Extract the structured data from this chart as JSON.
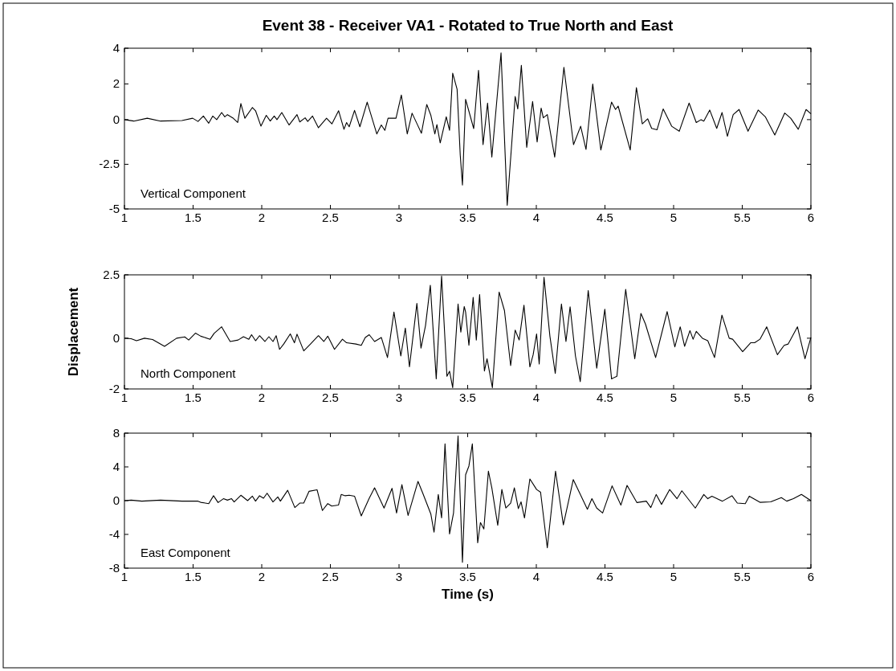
{
  "chart_data": [
    {
      "type": "line",
      "title": "Event 38 - Receiver VA1 - Rotated to True North and East",
      "xlim": [
        1,
        6
      ],
      "xticks": [
        1,
        1.5,
        2,
        2.5,
        3,
        3.5,
        4,
        4.5,
        5,
        5.5,
        6
      ],
      "ylim": [
        -5,
        4
      ],
      "yticks": [
        4,
        2,
        0,
        -2.5,
        -5
      ],
      "annotations": [
        "Vertical Component"
      ],
      "series": [
        {
          "color": "#000000",
          "x": [
            1.0,
            1.068,
            1.166,
            1.263,
            1.419,
            1.497,
            1.536,
            1.575,
            1.614,
            1.643,
            1.672,
            1.708,
            1.731,
            1.75,
            1.789,
            1.825,
            1.848,
            1.877,
            1.932,
            1.955,
            1.994,
            2.033,
            2.062,
            2.091,
            2.111,
            2.146,
            2.199,
            2.257,
            2.277,
            2.316,
            2.335,
            2.37,
            2.413,
            2.472,
            2.511,
            2.56,
            2.599,
            2.618,
            2.637,
            2.676,
            2.715,
            2.768,
            2.838,
            2.871,
            2.897,
            2.92,
            2.978,
            3.017,
            3.06,
            3.095,
            3.134,
            3.163,
            3.202,
            3.232,
            3.261,
            3.276,
            3.3,
            3.344,
            3.368,
            3.391,
            3.423,
            3.446,
            3.462,
            3.485,
            3.544,
            3.579,
            3.612,
            3.645,
            3.676,
            3.743,
            3.788,
            3.846,
            3.865,
            3.891,
            3.93,
            3.973,
            4.006,
            4.035,
            4.051,
            4.08,
            4.134,
            4.201,
            4.271,
            4.323,
            4.362,
            4.411,
            4.47,
            4.548,
            4.577,
            4.596,
            4.684,
            4.729,
            4.772,
            4.811,
            4.84,
            4.879,
            4.924,
            4.986,
            5.041,
            5.113,
            5.165,
            5.2,
            5.22,
            5.263,
            5.314,
            5.353,
            5.392,
            5.434,
            5.477,
            5.542,
            5.616,
            5.668,
            5.737,
            5.809,
            5.853,
            5.908,
            5.965,
            6.0
          ],
          "values": [
            0,
            -0.08,
            0.08,
            -0.08,
            -0.05,
            0.08,
            -0.1,
            0.2,
            -0.2,
            0.2,
            0,
            0.4,
            0.16,
            0.28,
            0.1,
            -0.16,
            0.9,
            0.08,
            0.68,
            0.5,
            -0.36,
            0.24,
            -0.08,
            0.2,
            0,
            0.4,
            -0.3,
            0.28,
            -0.13,
            0.1,
            -0.1,
            0.2,
            -0.45,
            0.08,
            -0.24,
            0.5,
            -0.54,
            -0.16,
            -0.4,
            0.52,
            -0.4,
            0.98,
            -0.8,
            -0.3,
            -0.6,
            0.08,
            0.08,
            1.38,
            -0.8,
            0.36,
            -0.28,
            -0.76,
            0.85,
            0.24,
            -0.8,
            -0.28,
            -1.3,
            0.16,
            -0.6,
            2.6,
            1.7,
            -2.0,
            -3.66,
            1.14,
            -0.5,
            2.76,
            -1.4,
            0.93,
            -2.1,
            3.74,
            -4.8,
            1.3,
            0.6,
            3.04,
            -1.55,
            1.02,
            -1.25,
            0.65,
            0.1,
            0.28,
            -2.1,
            2.93,
            -1.4,
            -0.37,
            -1.67,
            2.0,
            -1.7,
            0.98,
            0.57,
            0.76,
            -1.7,
            1.79,
            -0.24,
            0.05,
            -0.49,
            -0.57,
            0.6,
            -0.37,
            -0.65,
            0.93,
            -0.16,
            0,
            -0.08,
            0.54,
            -0.49,
            0.4,
            -0.93,
            0.28,
            0.57,
            -0.65,
            0.54,
            0.16,
            -0.86,
            0.37,
            0.08,
            -0.54,
            0.57,
            0.33
          ]
        }
      ]
    },
    {
      "type": "line",
      "ylabel": "Displacement",
      "xlim": [
        1,
        6
      ],
      "xticks": [
        1,
        1.5,
        2,
        2.5,
        3,
        3.5,
        4,
        4.5,
        5,
        5.5,
        6
      ],
      "ylim": [
        -2,
        2.5
      ],
      "yticks": [
        2.5,
        0,
        -2
      ],
      "annotations": [
        "North Component"
      ],
      "series": [
        {
          "color": "#000000",
          "x": [
            1.0,
            1.049,
            1.088,
            1.146,
            1.205,
            1.292,
            1.38,
            1.439,
            1.468,
            1.517,
            1.556,
            1.624,
            1.653,
            1.708,
            1.77,
            1.828,
            1.867,
            1.906,
            1.926,
            1.955,
            1.984,
            2.023,
            2.052,
            2.082,
            2.105,
            2.13,
            2.16,
            2.208,
            2.238,
            2.257,
            2.306,
            2.355,
            2.413,
            2.452,
            2.481,
            2.53,
            2.588,
            2.618,
            2.686,
            2.725,
            2.754,
            2.783,
            2.822,
            2.871,
            2.916,
            2.963,
            3.013,
            3.046,
            3.076,
            3.13,
            3.16,
            3.193,
            3.228,
            3.271,
            3.31,
            3.349,
            3.368,
            3.391,
            3.43,
            3.45,
            3.475,
            3.485,
            3.509,
            3.54,
            3.563,
            3.587,
            3.622,
            3.641,
            3.68,
            3.729,
            3.768,
            3.813,
            3.846,
            3.875,
            3.91,
            3.953,
            3.977,
            4.002,
            4.021,
            4.056,
            4.099,
            4.138,
            4.183,
            4.216,
            4.246,
            4.285,
            4.32,
            4.378,
            4.44,
            4.499,
            4.548,
            4.587,
            4.651,
            4.717,
            4.762,
            4.795,
            4.869,
            4.953,
            5.009,
            5.048,
            5.08,
            5.119,
            5.142,
            5.165,
            5.21,
            5.249,
            5.298,
            5.352,
            5.405,
            5.43,
            5.503,
            5.561,
            5.59,
            5.629,
            5.678,
            5.756,
            5.805,
            5.834,
            5.902,
            5.957,
            6.0
          ],
          "values": [
            0,
            -0.02,
            -0.1,
            0,
            -0.05,
            -0.32,
            0,
            0.05,
            -0.07,
            0.2,
            0.08,
            -0.04,
            0.19,
            0.45,
            -0.13,
            -0.07,
            0.06,
            -0.04,
            0.14,
            -0.1,
            0.1,
            -0.13,
            0.06,
            -0.13,
            0.1,
            -0.44,
            -0.23,
            0.17,
            -0.18,
            0.16,
            -0.5,
            -0.23,
            0.1,
            -0.13,
            0.08,
            -0.44,
            -0.04,
            -0.18,
            -0.23,
            -0.28,
            0.03,
            0.14,
            -0.13,
            0.03,
            -0.76,
            1.03,
            -0.7,
            0.4,
            -1.13,
            1.37,
            -0.39,
            0.5,
            2.09,
            -1.6,
            2.45,
            -1.5,
            -1.3,
            -1.95,
            1.35,
            0.24,
            1.25,
            1.03,
            -0.28,
            1.61,
            -0.07,
            1.72,
            -1.29,
            -0.81,
            -1.95,
            1.82,
            1.09,
            -1.08,
            0.32,
            -0.07,
            1.3,
            -1.13,
            -0.65,
            0.17,
            -1.02,
            2.4,
            0.08,
            -1.39,
            1.35,
            -0.13,
            1.24,
            -0.7,
            -1.71,
            1.88,
            -1.18,
            1.14,
            -1.6,
            -1.5,
            1.93,
            -0.81,
            0.98,
            0.56,
            -0.76,
            1.05,
            -0.34,
            0.45,
            -0.32,
            0.3,
            -0.04,
            0.27,
            0,
            -0.1,
            -0.76,
            0.91,
            0,
            -0.04,
            -0.53,
            -0.18,
            -0.18,
            -0.04,
            0.45,
            -0.65,
            -0.28,
            -0.23,
            0.45,
            -0.81,
            0.03
          ]
        }
      ]
    },
    {
      "type": "line",
      "xlabel": "Time (s)",
      "xlim": [
        1,
        6
      ],
      "xticks": [
        1,
        1.5,
        2,
        2.5,
        3,
        3.5,
        4,
        4.5,
        5,
        5.5,
        6
      ],
      "ylim": [
        -8,
        8
      ],
      "yticks": [
        8,
        4,
        0,
        -4,
        -8
      ],
      "annotations": [
        "East Component"
      ],
      "series": [
        {
          "color": "#000000",
          "x": [
            1.0,
            1.049,
            1.127,
            1.263,
            1.419,
            1.536,
            1.555,
            1.614,
            1.649,
            1.682,
            1.721,
            1.75,
            1.78,
            1.799,
            1.848,
            1.897,
            1.932,
            1.955,
            1.984,
            2.013,
            2.039,
            2.082,
            2.117,
            2.136,
            2.189,
            2.241,
            2.277,
            2.306,
            2.345,
            2.403,
            2.442,
            2.481,
            2.51,
            2.559,
            2.579,
            2.608,
            2.637,
            2.676,
            2.725,
            2.783,
            2.822,
            2.891,
            2.949,
            2.982,
            3.021,
            3.066,
            3.138,
            3.173,
            3.232,
            3.255,
            3.286,
            3.31,
            3.335,
            3.368,
            3.397,
            3.43,
            3.462,
            3.485,
            3.509,
            3.534,
            3.573,
            3.593,
            3.618,
            3.651,
            3.676,
            3.719,
            3.749,
            3.778,
            3.813,
            3.84,
            3.869,
            3.889,
            3.914,
            3.953,
            4.002,
            4.031,
            4.08,
            4.14,
            4.197,
            4.269,
            4.372,
            4.405,
            4.44,
            4.483,
            4.552,
            4.616,
            4.661,
            4.733,
            4.801,
            4.834,
            4.873,
            4.912,
            4.971,
            5.025,
            5.06,
            5.158,
            5.22,
            5.249,
            5.279,
            5.356,
            5.425,
            5.464,
            5.522,
            5.551,
            5.629,
            5.707,
            5.785,
            5.824,
            5.873,
            5.931,
            6.0
          ],
          "values": [
            0,
            0.06,
            -0.06,
            0.06,
            -0.06,
            -0.06,
            -0.2,
            -0.35,
            0.58,
            -0.23,
            0.23,
            0.06,
            0.23,
            -0.15,
            0.64,
            0,
            0.53,
            -0.06,
            0.58,
            0.29,
            0.88,
            -0.15,
            0.44,
            -0.06,
            1.23,
            -0.82,
            -0.29,
            -0.29,
            1.11,
            1.29,
            -1.17,
            -0.35,
            -0.64,
            -0.53,
            0.73,
            0.58,
            0.64,
            0.53,
            -1.81,
            0.29,
            1.52,
            -0.88,
            1.46,
            -1.46,
            1.9,
            -1.75,
            2.28,
            0.88,
            -1.6,
            -3.74,
            0.73,
            -2.05,
            6.73,
            -3.95,
            -1.46,
            7.66,
            -7.3,
            3.07,
            4.1,
            6.73,
            -5.0,
            -2.6,
            -3.36,
            3.5,
            1.52,
            -2.92,
            1.32,
            -0.88,
            -0.29,
            1.52,
            -0.94,
            -0.15,
            -2.05,
            2.57,
            1.32,
            1.0,
            -5.6,
            3.5,
            -2.87,
            2.49,
            -1.02,
            0.23,
            -0.88,
            -1.46,
            1.75,
            -0.53,
            1.81,
            -0.23,
            -0.06,
            -0.82,
            0.73,
            -0.44,
            1.32,
            0.23,
            1.17,
            -0.88,
            0.73,
            0.23,
            0.53,
            -0.06,
            0.58,
            -0.29,
            -0.35,
            0.53,
            -0.2,
            -0.15,
            0.35,
            -0.06,
            0.23,
            0.73,
            0
          ]
        }
      ]
    }
  ]
}
